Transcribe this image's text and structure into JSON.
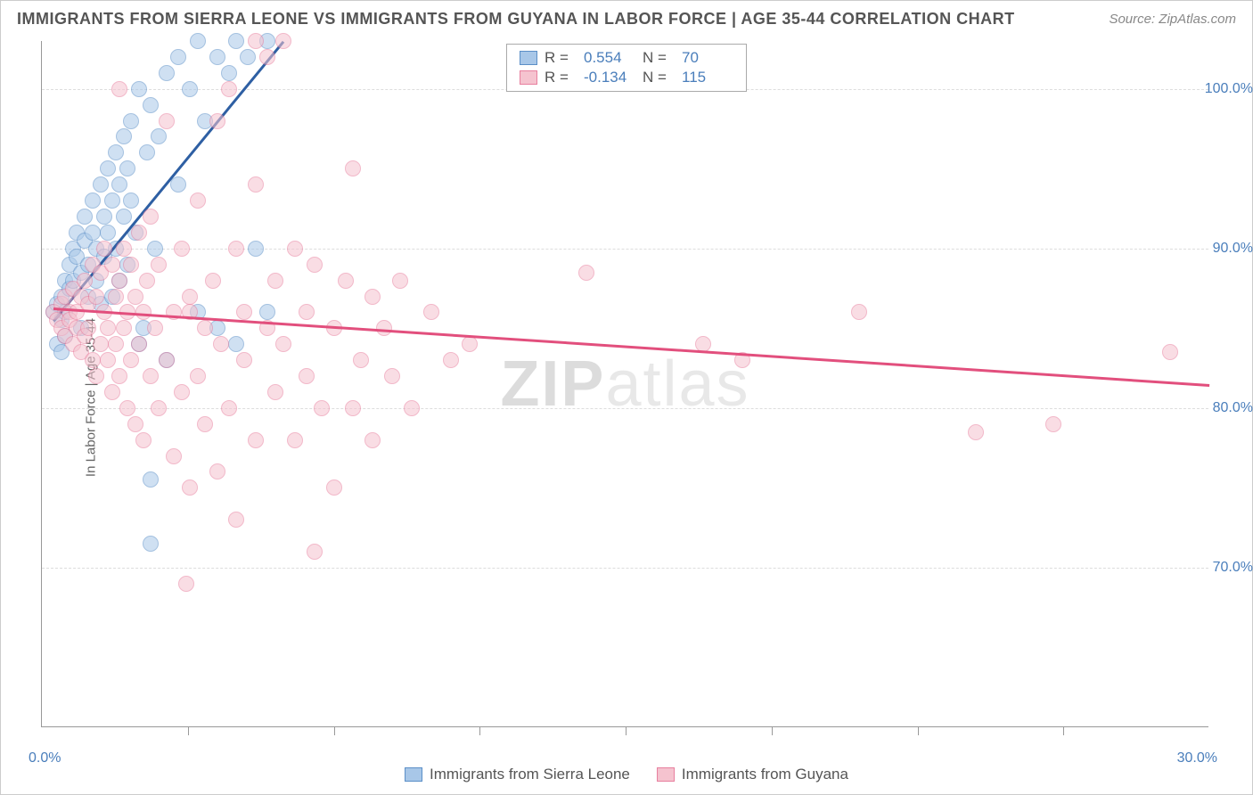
{
  "title": "IMMIGRANTS FROM SIERRA LEONE VS IMMIGRANTS FROM GUYANA IN LABOR FORCE | AGE 35-44 CORRELATION CHART",
  "source": "Source: ZipAtlas.com",
  "watermark_bold": "ZIP",
  "watermark_rest": "atlas",
  "y_axis_title": "In Labor Force | Age 35-44",
  "chart": {
    "type": "scatter",
    "background_color": "#ffffff",
    "grid_color": "#dddddd",
    "axis_color": "#999999",
    "label_color": "#4a7ebb",
    "title_color": "#555555",
    "source_color": "#888888",
    "xlim": [
      0,
      30
    ],
    "ylim": [
      60,
      103
    ],
    "y_ticks": [
      70,
      80,
      90,
      100
    ],
    "y_tick_labels": [
      "70.0%",
      "80.0%",
      "90.0%",
      "100.0%"
    ],
    "x_corner_left": "0.0%",
    "x_corner_right": "30.0%",
    "x_minor_ticks": [
      3.75,
      7.5,
      11.25,
      15,
      18.75,
      22.5,
      26.25
    ],
    "marker_radius": 9,
    "marker_opacity": 0.55,
    "series": [
      {
        "name": "Immigrants from Sierra Leone",
        "fill": "#a8c7e8",
        "stroke": "#5b8fc7",
        "trend_color": "#2e5fa3",
        "R": "0.554",
        "N": "70",
        "trend": {
          "x1": 0.3,
          "y1": 85.5,
          "x2": 6.2,
          "y2": 103
        },
        "points": [
          [
            0.3,
            86
          ],
          [
            0.4,
            86.5
          ],
          [
            0.5,
            87
          ],
          [
            0.5,
            85.5
          ],
          [
            0.6,
            88
          ],
          [
            0.6,
            86
          ],
          [
            0.7,
            89
          ],
          [
            0.7,
            87.5
          ],
          [
            0.8,
            90
          ],
          [
            0.8,
            88
          ],
          [
            0.9,
            89.5
          ],
          [
            0.9,
            91
          ],
          [
            1.0,
            88.5
          ],
          [
            1.0,
            85
          ],
          [
            1.1,
            90.5
          ],
          [
            1.1,
            92
          ],
          [
            1.2,
            89
          ],
          [
            1.2,
            87
          ],
          [
            1.3,
            93
          ],
          [
            1.3,
            91
          ],
          [
            1.4,
            88
          ],
          [
            1.4,
            90
          ],
          [
            1.5,
            94
          ],
          [
            1.5,
            86.5
          ],
          [
            1.6,
            92
          ],
          [
            1.6,
            89.5
          ],
          [
            1.7,
            95
          ],
          [
            1.7,
            91
          ],
          [
            1.8,
            87
          ],
          [
            1.8,
            93
          ],
          [
            1.9,
            96
          ],
          [
            1.9,
            90
          ],
          [
            2.0,
            94
          ],
          [
            2.0,
            88
          ],
          [
            2.1,
            97
          ],
          [
            2.1,
            92
          ],
          [
            2.2,
            95
          ],
          [
            2.2,
            89
          ],
          [
            2.3,
            98
          ],
          [
            2.3,
            93
          ],
          [
            2.4,
            91
          ],
          [
            2.5,
            100
          ],
          [
            2.5,
            84
          ],
          [
            2.6,
            85
          ],
          [
            2.7,
            96
          ],
          [
            2.8,
            99
          ],
          [
            2.9,
            90
          ],
          [
            3.0,
            97
          ],
          [
            3.2,
            101
          ],
          [
            3.2,
            83
          ],
          [
            3.5,
            102
          ],
          [
            3.5,
            94
          ],
          [
            3.8,
            100
          ],
          [
            4.0,
            103
          ],
          [
            4.0,
            86
          ],
          [
            4.2,
            98
          ],
          [
            4.5,
            102
          ],
          [
            4.5,
            85
          ],
          [
            4.8,
            101
          ],
          [
            5.0,
            103
          ],
          [
            5.0,
            84
          ],
          [
            5.3,
            102
          ],
          [
            5.5,
            90
          ],
          [
            5.8,
            103
          ],
          [
            5.8,
            86
          ],
          [
            2.8,
            75.5
          ],
          [
            2.8,
            71.5
          ],
          [
            0.4,
            84
          ],
          [
            0.5,
            83.5
          ],
          [
            0.6,
            84.5
          ]
        ]
      },
      {
        "name": "Immigrants from Guyana",
        "fill": "#f5c3cf",
        "stroke": "#e87f9e",
        "trend_color": "#e24f7d",
        "R": "-0.134",
        "N": "115",
        "trend": {
          "x1": 0.3,
          "y1": 86.3,
          "x2": 30,
          "y2": 81.5
        },
        "points": [
          [
            0.3,
            86
          ],
          [
            0.4,
            85.5
          ],
          [
            0.5,
            86.5
          ],
          [
            0.5,
            85
          ],
          [
            0.6,
            87
          ],
          [
            0.6,
            84.5
          ],
          [
            0.7,
            86
          ],
          [
            0.7,
            85.5
          ],
          [
            0.8,
            87.5
          ],
          [
            0.8,
            84
          ],
          [
            0.9,
            86
          ],
          [
            0.9,
            85
          ],
          [
            1.0,
            87
          ],
          [
            1.0,
            83.5
          ],
          [
            1.1,
            88
          ],
          [
            1.1,
            84.5
          ],
          [
            1.2,
            86.5
          ],
          [
            1.2,
            85
          ],
          [
            1.3,
            89
          ],
          [
            1.3,
            83
          ],
          [
            1.4,
            87
          ],
          [
            1.4,
            82
          ],
          [
            1.5,
            88.5
          ],
          [
            1.5,
            84
          ],
          [
            1.6,
            86
          ],
          [
            1.6,
            90
          ],
          [
            1.7,
            85
          ],
          [
            1.7,
            83
          ],
          [
            1.8,
            89
          ],
          [
            1.8,
            81
          ],
          [
            1.9,
            87
          ],
          [
            1.9,
            84
          ],
          [
            2.0,
            88
          ],
          [
            2.0,
            82
          ],
          [
            2.1,
            90
          ],
          [
            2.1,
            85
          ],
          [
            2.2,
            86
          ],
          [
            2.2,
            80
          ],
          [
            2.3,
            89
          ],
          [
            2.3,
            83
          ],
          [
            2.4,
            87
          ],
          [
            2.4,
            79
          ],
          [
            2.5,
            91
          ],
          [
            2.5,
            84
          ],
          [
            2.6,
            86
          ],
          [
            2.6,
            78
          ],
          [
            2.7,
            88
          ],
          [
            2.8,
            82
          ],
          [
            2.8,
            92
          ],
          [
            2.9,
            85
          ],
          [
            3.0,
            80
          ],
          [
            3.0,
            89
          ],
          [
            3.2,
            98
          ],
          [
            3.2,
            83
          ],
          [
            3.4,
            86
          ],
          [
            3.4,
            77
          ],
          [
            3.6,
            90
          ],
          [
            3.6,
            81
          ],
          [
            3.7,
            69
          ],
          [
            3.8,
            87
          ],
          [
            3.8,
            75
          ],
          [
            4.0,
            93
          ],
          [
            4.0,
            82
          ],
          [
            4.2,
            85
          ],
          [
            4.2,
            79
          ],
          [
            4.4,
            88
          ],
          [
            4.5,
            76
          ],
          [
            4.6,
            84
          ],
          [
            4.8,
            100
          ],
          [
            4.8,
            80
          ],
          [
            5.0,
            90
          ],
          [
            5.0,
            73
          ],
          [
            5.2,
            86
          ],
          [
            5.2,
            83
          ],
          [
            5.5,
            94
          ],
          [
            5.5,
            78
          ],
          [
            5.8,
            102
          ],
          [
            5.8,
            85
          ],
          [
            6.0,
            81
          ],
          [
            6.0,
            88
          ],
          [
            6.2,
            103
          ],
          [
            6.2,
            84
          ],
          [
            6.5,
            78
          ],
          [
            6.5,
            90
          ],
          [
            6.8,
            82
          ],
          [
            6.8,
            86
          ],
          [
            7.0,
            71
          ],
          [
            7.0,
            89
          ],
          [
            7.2,
            80
          ],
          [
            7.5,
            85
          ],
          [
            7.5,
            75
          ],
          [
            7.8,
            88
          ],
          [
            8.0,
            95
          ],
          [
            8.0,
            80
          ],
          [
            8.2,
            83
          ],
          [
            8.5,
            87
          ],
          [
            8.5,
            78
          ],
          [
            8.8,
            85
          ],
          [
            9.0,
            82
          ],
          [
            9.2,
            88
          ],
          [
            9.5,
            80
          ],
          [
            10.0,
            86
          ],
          [
            10.5,
            83
          ],
          [
            11.0,
            84
          ],
          [
            14.0,
            88.5
          ],
          [
            17.0,
            84
          ],
          [
            18.0,
            83
          ],
          [
            21.0,
            86
          ],
          [
            24.0,
            78.5
          ],
          [
            26.0,
            79
          ],
          [
            29.0,
            83.5
          ],
          [
            5.5,
            103
          ],
          [
            4.5,
            98
          ],
          [
            3.8,
            86
          ],
          [
            2.0,
            100
          ]
        ]
      }
    ]
  },
  "bottom_legend": [
    {
      "label": "Immigrants from Sierra Leone",
      "fill": "#a8c7e8",
      "stroke": "#5b8fc7"
    },
    {
      "label": "Immigrants from Guyana",
      "fill": "#f5c3cf",
      "stroke": "#e87f9e"
    }
  ]
}
